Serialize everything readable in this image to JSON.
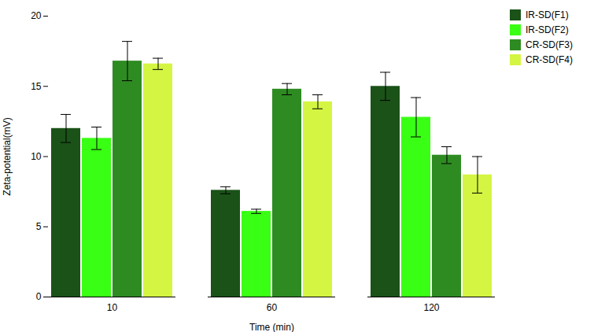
{
  "chart_data": {
    "type": "bar",
    "xlabel": "Time (min)",
    "ylabel": "Zeta-potential(mV)",
    "categories": [
      "10",
      "60",
      "120"
    ],
    "series": [
      {
        "name": "IR-SD(F1)",
        "color": "#1a5218",
        "values": [
          12.0,
          7.6,
          15.0
        ],
        "errors": [
          1.0,
          0.25,
          1.0
        ]
      },
      {
        "name": "IR-SD(F2)",
        "color": "#39ff14",
        "values": [
          11.3,
          6.1,
          12.8
        ],
        "errors": [
          0.8,
          0.15,
          1.4
        ]
      },
      {
        "name": "CR-SD(F3)",
        "color": "#2e8b22",
        "values": [
          16.8,
          14.8,
          10.1
        ],
        "errors": [
          1.4,
          0.4,
          0.6
        ]
      },
      {
        "name": "CR-SD(F4)",
        "color": "#d4f542",
        "values": [
          16.6,
          13.9,
          8.7
        ],
        "errors": [
          0.4,
          0.5,
          1.3
        ]
      }
    ],
    "ylim": [
      0,
      20
    ],
    "yticks": [
      0,
      5,
      10,
      15,
      20
    ],
    "grid": false,
    "legend": "upper right"
  }
}
